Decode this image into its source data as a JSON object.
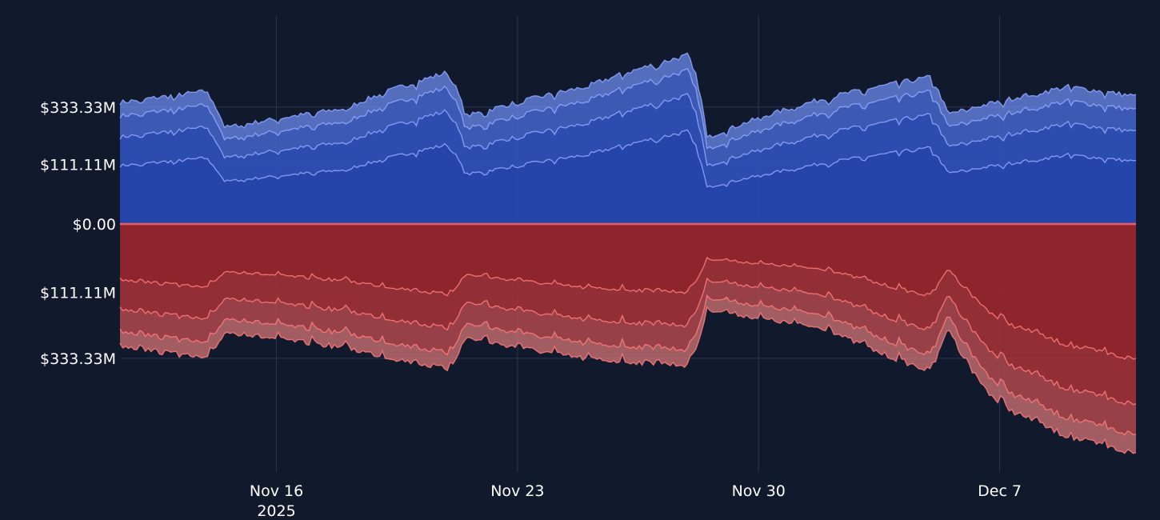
{
  "chart_data": {
    "type": "area",
    "x_axis": {
      "tick_labels": [
        "Nov 16",
        "Nov 23",
        "Nov 30",
        "Dec 7"
      ],
      "tick_dates": [
        "2025-11-16",
        "2025-11-23",
        "2025-11-30",
        "2025-12-07"
      ],
      "sub_label": "2025",
      "range": [
        "2025-11-11T11:00",
        "2025-12-10T23:00"
      ]
    },
    "y_axis": {
      "scale": "symlog",
      "tick_values": [
        333.33,
        111.11,
        0,
        -111.11,
        -333.33
      ],
      "tick_labels": [
        "$333.33M",
        "$111.11M",
        "$0.00",
        "$111.11M",
        "$333.33M"
      ],
      "range": [
        -1400,
        1400
      ],
      "grid": true
    },
    "positive_total_anchors": {
      "unit": "$M",
      "dates": [
        "2025-11-11",
        "2025-11-14",
        "2025-11-14.5",
        "2025-11-18",
        "2025-11-21",
        "2025-11-21.5",
        "2025-11-25",
        "2025-11-28",
        "2025-11-28.5",
        "2025-12-02",
        "2025-12-05",
        "2025-12-05.5",
        "2025-12-09",
        "2025-12-10.9"
      ],
      "values": [
        340,
        420,
        230,
        320,
        560,
        280,
        450,
        720,
        190,
        380,
        520,
        290,
        450,
        390
      ]
    },
    "negative_total_anchors": {
      "unit": "$M",
      "dates": [
        "2025-11-11",
        "2025-11-14",
        "2025-11-14.5",
        "2025-11-18",
        "2025-11-21",
        "2025-11-21.5",
        "2025-11-25",
        "2025-11-28",
        "2025-11-28.5",
        "2025-12-02",
        "2025-12-05",
        "2025-12-05.5",
        "2025-12-07",
        "2025-12-09",
        "2025-12-10.9"
      ],
      "values": [
        -260,
        -330,
        -220,
        -280,
        -380,
        -240,
        -330,
        -360,
        -150,
        -210,
        -390,
        -200,
        -600,
        -900,
        -1100
      ]
    },
    "series_fractions": [
      0.3,
      0.55,
      0.8,
      1.0
    ],
    "colors": {
      "positive_fill": "#6f8ff5",
      "positive_line": "#8fa6ff",
      "positive_deep": "#1d3ea8",
      "negative_fill": "#e07a7a",
      "negative_line": "#ff7a7a",
      "negative_deep": "#8b1a22",
      "zero_line": "#e95c6a",
      "grid": "#2a3552",
      "background": "#111a2d"
    }
  }
}
